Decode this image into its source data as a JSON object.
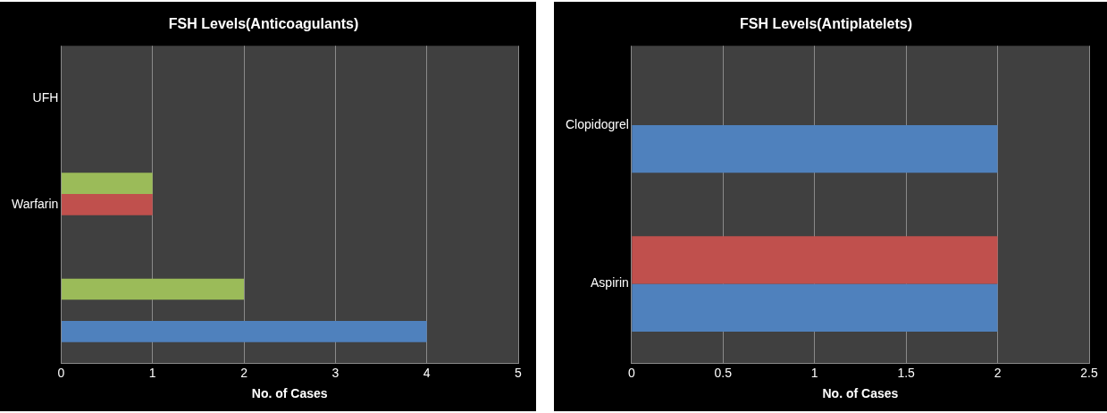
{
  "chart_data": [
    {
      "type": "bar",
      "title": "FSH Levels(Anticoagulants)",
      "xlabel": "No. of Cases",
      "orientation": "horizontal",
      "categories": [
        "UFH",
        "Warfarin",
        null
      ],
      "series": [
        {
          "color": "#9bbb59",
          "values": [
            null,
            1,
            2
          ]
        },
        {
          "color": "#c0504d",
          "values": [
            null,
            1,
            null
          ]
        },
        {
          "color": "#4f81bd",
          "values": [
            null,
            null,
            4
          ]
        }
      ],
      "xlim": [
        0,
        5
      ],
      "xticks": [
        0,
        1,
        2,
        3,
        4,
        5
      ],
      "grid": "x",
      "legend": false
    },
    {
      "type": "bar",
      "title": "FSH Levels(Antiplatelets)",
      "xlabel": "No. of Cases",
      "orientation": "horizontal",
      "categories": [
        "Clopidogrel",
        "Aspirin"
      ],
      "series": [
        {
          "color": "#c0504d",
          "values": [
            null,
            2
          ]
        },
        {
          "color": "#4f81bd",
          "values": [
            2,
            2
          ]
        }
      ],
      "xlim": [
        0,
        2.5
      ],
      "xticks": [
        0,
        0.5,
        1,
        1.5,
        2,
        2.5
      ],
      "grid": "x",
      "legend": false
    }
  ]
}
